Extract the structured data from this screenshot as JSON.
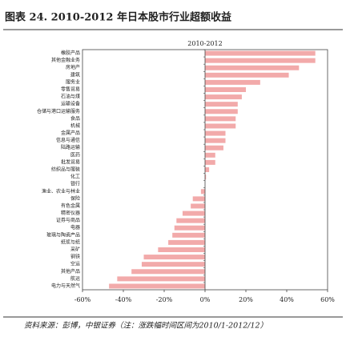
{
  "chart_data": {
    "type": "bar",
    "orientation": "horizontal",
    "title": "图表 24. 2010-2012 年日本股市行业超额收益",
    "source": "资料来源：彭博，中银证券（注：涨跌幅时间区间为2010/1-2012/12）",
    "categories": [
      "橡胶产品",
      "其他金融业务",
      "房地产",
      "建筑",
      "服务业",
      "零售贸易",
      "石油与煤",
      "运输设备",
      "仓储与港口运输服务",
      "食品",
      "机械",
      "金属产品",
      "信息与通信",
      "陆路运输",
      "医药",
      "批发贸易",
      "纺织品与服装",
      "化工",
      "银行",
      "渔业、农业与林业",
      "保险",
      "有色金属",
      "精密仪器",
      "证券与商品",
      "电器",
      "玻璃与陶瓷产品",
      "纸浆与纸",
      "采矿",
      "钢铁",
      "空运",
      "其他产品",
      "航运",
      "电力与天然气"
    ],
    "series": [
      {
        "name": "2010-2012",
        "color": "#f2aaaa",
        "values": [
          54,
          54,
          46,
          41,
          27,
          20,
          18,
          16,
          16,
          15,
          15,
          10,
          10,
          9,
          5,
          5,
          2,
          0.5,
          0,
          -2,
          -6,
          -7,
          -11,
          -14,
          -15,
          -16,
          -18,
          -23,
          -30,
          -31,
          -36,
          -43,
          -47
        ]
      }
    ],
    "xlim": [
      -60,
      60
    ],
    "xticks": [
      {
        "value": -60,
        "label": "-60%"
      },
      {
        "value": -40,
        "label": "-40%"
      },
      {
        "value": -20,
        "label": "-20%"
      },
      {
        "value": 0,
        "label": "0%"
      },
      {
        "value": 20,
        "label": "20%"
      },
      {
        "value": 40,
        "label": "40%"
      },
      {
        "value": 60,
        "label": "60%"
      }
    ],
    "grid": false
  }
}
